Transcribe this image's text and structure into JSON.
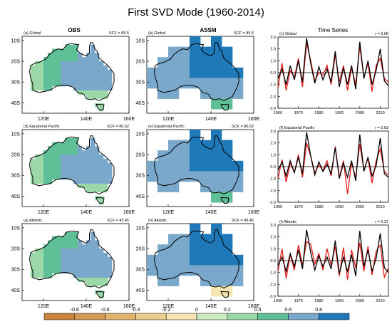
{
  "title": "First SVD Mode (1960-2014)",
  "columns": [
    "OBS",
    "ASSM",
    "Time Series"
  ],
  "map_panels": [
    {
      "label": "(a) Global",
      "scf": "SCF = 85.5",
      "source": "OBS",
      "row": 0
    },
    {
      "label": "(b) Global",
      "scf": "SCF = 85.5",
      "source": "ASSM",
      "row": 0
    },
    {
      "label": "(d) Equatorial Pacific",
      "scf": "SCF = 86.62",
      "source": "OBS",
      "row": 1
    },
    {
      "label": "(e) Equatorial Pacific",
      "scf": "SCF = 86.62",
      "source": "ASSM",
      "row": 1
    },
    {
      "label": "(g) Atlantic",
      "scf": "SCF = 43.45",
      "source": "OBS",
      "row": 2
    },
    {
      "label": "(h) Atlantic",
      "scf": "SCF = 43.45",
      "source": "ASSM",
      "row": 2
    }
  ],
  "map_axes": {
    "lon_ticks": [
      "120E",
      "140E",
      "160E"
    ],
    "lat_ticks": [
      "10S",
      "20S",
      "30S",
      "40S"
    ],
    "lon_range": [
      110,
      160
    ],
    "lat_range": [
      -45,
      -8
    ]
  },
  "chart_data": {
    "type": "line",
    "x_ticks": [
      "1960",
      "1970",
      "1980",
      "1990",
      "2000",
      "2010"
    ],
    "y_ticks": [
      "3.0",
      "2.0",
      "1.0",
      "0.0",
      "-1.0",
      "-2.0",
      "-3.0"
    ],
    "xlim": [
      1960,
      2014
    ],
    "ylim": [
      -3,
      3
    ],
    "colors": {
      "obs": "#000000",
      "assm": "#e21b1b"
    },
    "panels": [
      {
        "label": "(c) Global",
        "corr": "r = 0.66",
        "x": [
          1960,
          1962,
          1964,
          1966,
          1968,
          1970,
          1972,
          1974,
          1976,
          1978,
          1980,
          1982,
          1984,
          1986,
          1988,
          1990,
          1992,
          1994,
          1996,
          1998,
          2000,
          2002,
          2004,
          2006,
          2008,
          2010,
          2012,
          2014
        ],
        "series": [
          {
            "values": [
              -0.5,
              0.3,
              -1.0,
              0.6,
              -0.6,
              1.0,
              -0.8,
              2.9,
              0.8,
              -0.9,
              0.5,
              -0.6,
              0.3,
              -0.8,
              1.8,
              -1.2,
              0.4,
              -1.0,
              0.6,
              -1.4,
              2.6,
              -0.5,
              1.0,
              -1.0,
              0.2,
              2.0,
              -0.7,
              -1.1
            ]
          },
          {
            "values": [
              -1.3,
              0.8,
              -1.5,
              0.2,
              -0.4,
              1.2,
              -1.2,
              2.5,
              1.0,
              -0.7,
              0.0,
              -0.2,
              0.6,
              -1.0,
              1.5,
              -0.8,
              0.6,
              -1.5,
              0.4,
              -1.0,
              2.2,
              -0.4,
              0.8,
              -1.6,
              0.6,
              1.2,
              -0.5,
              -0.8
            ]
          }
        ]
      },
      {
        "label": "(f) Equatorial Pacific",
        "corr": "r = 0.63",
        "x": [
          1960,
          1962,
          1964,
          1966,
          1968,
          1970,
          1972,
          1974,
          1976,
          1978,
          1980,
          1982,
          1984,
          1986,
          1988,
          1990,
          1992,
          1994,
          1996,
          1998,
          2000,
          2002,
          2004,
          2006,
          2008,
          2010,
          2012,
          2014
        ],
        "series": [
          {
            "values": [
              -0.3,
              0.4,
              -0.8,
              0.5,
              -0.5,
              0.8,
              -0.6,
              2.9,
              0.9,
              -0.7,
              0.4,
              -0.4,
              0.2,
              -0.6,
              1.6,
              -1.0,
              0.3,
              -0.9,
              0.5,
              -1.2,
              2.7,
              -0.4,
              0.8,
              -0.8,
              0.1,
              2.4,
              -0.6,
              -0.9
            ]
          },
          {
            "values": [
              -1.0,
              0.6,
              -1.3,
              0.3,
              -0.5,
              1.0,
              -0.9,
              2.0,
              0.9,
              -0.5,
              0.1,
              -0.3,
              0.5,
              -0.8,
              1.7,
              -0.9,
              0.5,
              -2.3,
              0.3,
              -0.9,
              1.9,
              -0.3,
              0.7,
              -1.4,
              0.5,
              1.5,
              -0.4,
              -0.7
            ]
          }
        ]
      },
      {
        "label": "(i) Atlantic",
        "corr": "r = 0.37",
        "x": [
          1960,
          1962,
          1964,
          1966,
          1968,
          1970,
          1972,
          1974,
          1976,
          1978,
          1980,
          1982,
          1984,
          1986,
          1988,
          1990,
          1992,
          1994,
          1996,
          1998,
          2000,
          2002,
          2004,
          2006,
          2008,
          2010,
          2012,
          2014
        ],
        "series": [
          {
            "values": [
              -0.4,
              0.3,
              -0.9,
              0.6,
              -0.5,
              0.9,
              -0.7,
              2.6,
              0.7,
              -0.8,
              0.4,
              -0.5,
              0.3,
              -0.7,
              1.7,
              -1.1,
              0.3,
              -0.9,
              0.5,
              -1.3,
              2.5,
              -0.5,
              0.9,
              -0.9,
              0.2,
              2.3,
              -0.6,
              -1.0
            ]
          },
          {
            "values": [
              -0.9,
              1.0,
              -1.5,
              0.5,
              -0.8,
              1.3,
              -0.4,
              1.6,
              1.4,
              -0.3,
              0.6,
              -0.8,
              1.0,
              -0.4,
              1.2,
              -1.3,
              1.1,
              -1.6,
              0.9,
              -0.6,
              1.5,
              -0.9,
              1.2,
              -1.2,
              0.8,
              1.3,
              -1.4,
              -0.6
            ]
          }
        ]
      }
    ]
  },
  "colorbar": {
    "labels": [
      "-0.8",
      "-0.6",
      "-0.4",
      "-0.2",
      "0",
      "0.2",
      "0.4",
      "0.6",
      "0.8"
    ],
    "colors": [
      "#c9843d",
      "#d49a55",
      "#e0b36f",
      "#ebcc8e",
      "#f5e6b4",
      "#cdebc0",
      "#9bd8a8",
      "#5fbf96",
      "#7aa8cb",
      "#1f78b8"
    ]
  }
}
